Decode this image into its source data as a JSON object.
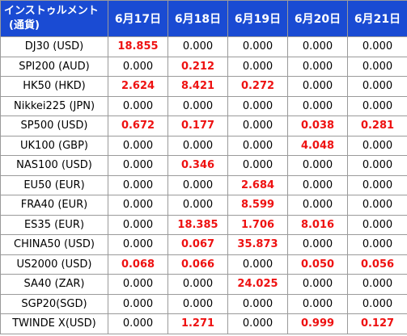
{
  "header": {
    "instrument_line1": "インストゥルメント",
    "instrument_line2": "(通貨)",
    "dates": [
      "6月17日",
      "6月18日",
      "6月19日",
      "6月20日",
      "6月21日"
    ]
  },
  "highlight_color": "#ee1111",
  "header_color": "#1a4bd3",
  "rows": [
    {
      "name": "DJ30 (USD)",
      "values": [
        "18.855",
        "0.000",
        "0.000",
        "0.000",
        "0.000"
      ],
      "highlight": [
        true,
        false,
        false,
        false,
        false
      ]
    },
    {
      "name": "SPI200 (AUD)",
      "values": [
        "0.000",
        "0.212",
        "0.000",
        "0.000",
        "0.000"
      ],
      "highlight": [
        false,
        true,
        false,
        false,
        false
      ]
    },
    {
      "name": "HK50 (HKD)",
      "values": [
        "2.624",
        "8.421",
        "0.272",
        "0.000",
        "0.000"
      ],
      "highlight": [
        true,
        true,
        true,
        false,
        false
      ]
    },
    {
      "name": "Nikkei225 (JPN)",
      "values": [
        "0.000",
        "0.000",
        "0.000",
        "0.000",
        "0.000"
      ],
      "highlight": [
        false,
        false,
        false,
        false,
        false
      ]
    },
    {
      "name": "SP500 (USD)",
      "values": [
        "0.672",
        "0.177",
        "0.000",
        "0.038",
        "0.281"
      ],
      "highlight": [
        true,
        true,
        false,
        true,
        true
      ]
    },
    {
      "name": "UK100 (GBP)",
      "values": [
        "0.000",
        "0.000",
        "0.000",
        "4.048",
        "0.000"
      ],
      "highlight": [
        false,
        false,
        false,
        true,
        false
      ]
    },
    {
      "name": "NAS100 (USD)",
      "values": [
        "0.000",
        "0.346",
        "0.000",
        "0.000",
        "0.000"
      ],
      "highlight": [
        false,
        true,
        false,
        false,
        false
      ]
    },
    {
      "name": "EU50 (EUR)",
      "values": [
        "0.000",
        "0.000",
        "2.684",
        "0.000",
        "0.000"
      ],
      "highlight": [
        false,
        false,
        true,
        false,
        false
      ]
    },
    {
      "name": "FRA40 (EUR)",
      "values": [
        "0.000",
        "0.000",
        "8.599",
        "0.000",
        "0.000"
      ],
      "highlight": [
        false,
        false,
        true,
        false,
        false
      ]
    },
    {
      "name": "ES35 (EUR)",
      "values": [
        "0.000",
        "18.385",
        "1.706",
        "8.016",
        "0.000"
      ],
      "highlight": [
        false,
        true,
        true,
        true,
        false
      ]
    },
    {
      "name": "CHINA50 (USD)",
      "values": [
        "0.000",
        "0.067",
        "35.873",
        "0.000",
        "0.000"
      ],
      "highlight": [
        false,
        true,
        true,
        false,
        false
      ]
    },
    {
      "name": "US2000 (USD)",
      "values": [
        "0.068",
        "0.066",
        "0.000",
        "0.050",
        "0.056"
      ],
      "highlight": [
        true,
        true,
        false,
        true,
        true
      ]
    },
    {
      "name": "SA40 (ZAR)",
      "values": [
        "0.000",
        "0.000",
        "24.025",
        "0.000",
        "0.000"
      ],
      "highlight": [
        false,
        false,
        true,
        false,
        false
      ]
    },
    {
      "name": "SGP20(SGD)",
      "values": [
        "0.000",
        "0.000",
        "0.000",
        "0.000",
        "0.000"
      ],
      "highlight": [
        false,
        false,
        false,
        false,
        false
      ]
    },
    {
      "name": "TWINDE X(USD)",
      "values": [
        "0.000",
        "1.271",
        "0.000",
        "0.999",
        "0.127"
      ],
      "highlight": [
        false,
        true,
        false,
        true,
        true
      ]
    }
  ]
}
